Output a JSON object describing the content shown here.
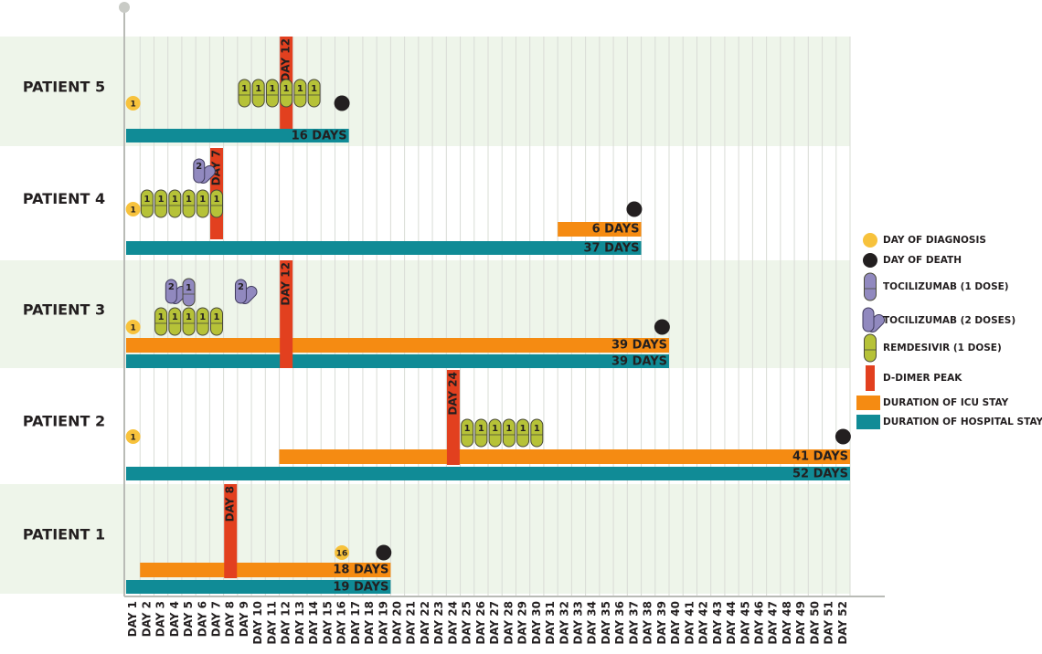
{
  "chart_data": {
    "type": "timeline",
    "categories": [
      "DAY 1",
      "DAY 2",
      "DAY 3",
      "DAY 4",
      "DAY 5",
      "DAY 6",
      "DAY 7",
      "DAY 8",
      "DAY 9",
      "DAY 10",
      "DAY 11",
      "DAY 12",
      "DAY 13",
      "DAY 14",
      "DAY 15",
      "DAY 16",
      "DAY 17",
      "DAY 18",
      "DAY 19",
      "DAY 20",
      "DAY 21",
      "DAY 22",
      "DAY 23",
      "DAY 24",
      "DAY 25",
      "DAY 26",
      "DAY 27",
      "DAY 28",
      "DAY 29",
      "DAY 30",
      "DAY 31",
      "DAY 32",
      "DAY 33",
      "DAY 34",
      "DAY 35",
      "DAY 36",
      "DAY 37",
      "DAY 38",
      "DAY 39",
      "DAY 40",
      "DAY 41",
      "DAY 42",
      "DAY 43",
      "DAY 44",
      "DAY 45",
      "DAY 46",
      "DAY 47",
      "DAY 48",
      "DAY 49",
      "DAY 50",
      "DAY 51",
      "DAY 52"
    ],
    "colors": {
      "diagnosis": "#f7c23c",
      "death": "#231f20",
      "tocilizumab": "#9189bf",
      "remdesivir": "#b6c238",
      "ddimer": "#e2401f",
      "icu": "#f58b12",
      "hospital": "#108b96"
    },
    "patients": [
      {
        "name": "PATIENT 5",
        "diagnosis": 1,
        "death": 16,
        "remdesivir": [
          {
            "day": 9,
            "doses": 1
          },
          {
            "day": 10,
            "doses": 1
          },
          {
            "day": 11,
            "doses": 1
          },
          {
            "day": 12,
            "doses": 1
          },
          {
            "day": 13,
            "doses": 1
          },
          {
            "day": 14,
            "doses": 1
          }
        ],
        "tocilizumab": [],
        "ddimer": {
          "day": 12,
          "label": "DAY 12"
        },
        "hospital": {
          "start": 1,
          "end": 16,
          "label": "16 DAYS"
        }
      },
      {
        "name": "PATIENT 4",
        "diagnosis": 1,
        "death": 37,
        "remdesivir": [
          {
            "day": 2,
            "doses": 1
          },
          {
            "day": 3,
            "doses": 1
          },
          {
            "day": 4,
            "doses": 1
          },
          {
            "day": 5,
            "doses": 1
          },
          {
            "day": 6,
            "doses": 1
          },
          {
            "day": 7,
            "doses": 1
          }
        ],
        "tocilizumab": [
          {
            "day": 6,
            "doses": 2
          }
        ],
        "ddimer": {
          "day": 7,
          "label": "DAY 7"
        },
        "icu": {
          "start": 32,
          "end": 37,
          "label": "6 DAYS"
        },
        "hospital": {
          "start": 1,
          "end": 37,
          "label": "37 DAYS"
        }
      },
      {
        "name": "PATIENT 3",
        "diagnosis": 1,
        "death": 39,
        "remdesivir": [
          {
            "day": 3,
            "doses": 1
          },
          {
            "day": 4,
            "doses": 1
          },
          {
            "day": 5,
            "doses": 1
          },
          {
            "day": 6,
            "doses": 1
          },
          {
            "day": 7,
            "doses": 1
          }
        ],
        "tocilizumab": [
          {
            "day": 4,
            "doses": 2
          },
          {
            "day": 5,
            "doses": 1
          },
          {
            "day": 9,
            "doses": 2
          }
        ],
        "ddimer": {
          "day": 12,
          "label": "DAY 12"
        },
        "icu": {
          "start": 1,
          "end": 39,
          "label": "39 DAYS"
        },
        "hospital": {
          "start": 1,
          "end": 39,
          "label": "39 DAYS"
        }
      },
      {
        "name": "PATIENT 2",
        "diagnosis": 1,
        "death": 52,
        "remdesivir": [
          {
            "day": 25,
            "doses": 1
          },
          {
            "day": 26,
            "doses": 1
          },
          {
            "day": 27,
            "doses": 1
          },
          {
            "day": 28,
            "doses": 1
          },
          {
            "day": 29,
            "doses": 1
          },
          {
            "day": 30,
            "doses": 1
          }
        ],
        "tocilizumab": [],
        "ddimer": {
          "day": 24,
          "label": "DAY 24"
        },
        "icu": {
          "start": 12,
          "end": 52,
          "label": "41 DAYS"
        },
        "hospital": {
          "start": 1,
          "end": 52,
          "label": "52 DAYS"
        }
      },
      {
        "name": "PATIENT 1",
        "diagnosis": 16,
        "death": 19,
        "remdesivir": [],
        "tocilizumab": [],
        "ddimer": {
          "day": 8,
          "label": "DAY 8"
        },
        "icu": {
          "start": 2,
          "end": 19,
          "label": "18 DAYS"
        },
        "hospital": {
          "start": 1,
          "end": 19,
          "label": "19 DAYS"
        }
      }
    ],
    "legend": [
      {
        "key": "diagnosis",
        "label": "DAY OF DIAGNOSIS"
      },
      {
        "key": "death",
        "label": "DAY OF DEATH"
      },
      {
        "key": "tocilizumab",
        "label": "TOCILIZUMAB (1 DOSE)"
      },
      {
        "key": "tocilizumab2",
        "label": "TOCILIZUMAB (2 DOSES)"
      },
      {
        "key": "remdesivir",
        "label": "REMDESIVIR (1 DOSE)"
      },
      {
        "key": "ddimer",
        "label": "D-DIMER PEAK"
      },
      {
        "key": "icu",
        "label": "DURATION OF ICU STAY"
      },
      {
        "key": "hospital",
        "label": "DURATION OF HOSPITAL STAY"
      }
    ]
  }
}
